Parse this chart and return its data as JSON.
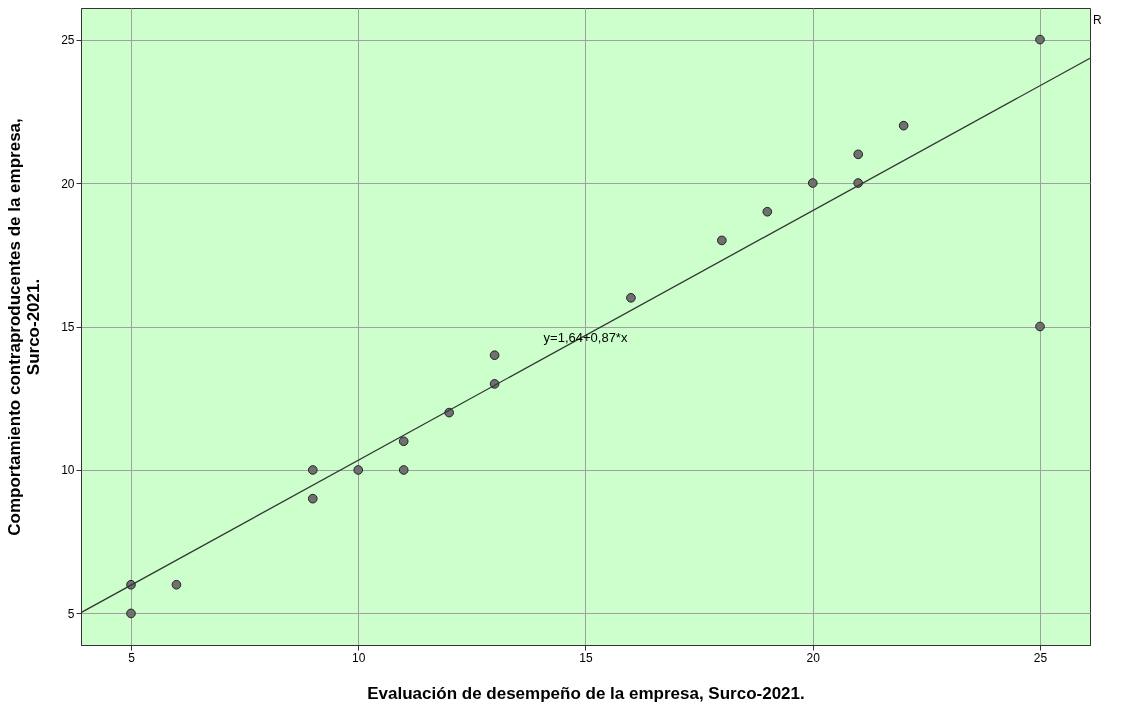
{
  "chart_data": {
    "type": "scatter",
    "xlabel": "Evaluación de desempeño de la empresa, Surco-2021.",
    "ylabel": "Comportamiento contraproducentes de la empresa, Surco-2021.",
    "xlim": [
      3.9,
      26.1
    ],
    "ylim": [
      3.9,
      26.1
    ],
    "xticks": [
      5,
      10,
      15,
      20,
      25
    ],
    "yticks": [
      5,
      10,
      15,
      20,
      25
    ],
    "grid": true,
    "marker": "circle",
    "annotations": [
      {
        "text": "y=1,64+0,87*x",
        "x": 15,
        "y": 14.6
      },
      "R"
    ],
    "series": [
      {
        "color": "#707070",
        "x": [
          5,
          5,
          6,
          9,
          9,
          10,
          11,
          11,
          12,
          13,
          13,
          16,
          18,
          19,
          20,
          21,
          21,
          22,
          25,
          25
        ],
        "values": [
          6,
          5,
          6,
          10,
          9,
          10,
          11,
          10,
          12,
          14,
          13,
          16,
          18,
          19,
          20,
          21,
          20,
          22,
          25,
          15
        ]
      },
      {
        "type": "line",
        "color": "#333333",
        "line_style": "solid",
        "marker": "none",
        "x": [
          3.9,
          26.1
        ],
        "values": [
          5.03,
          24.35
        ]
      }
    ]
  }
}
